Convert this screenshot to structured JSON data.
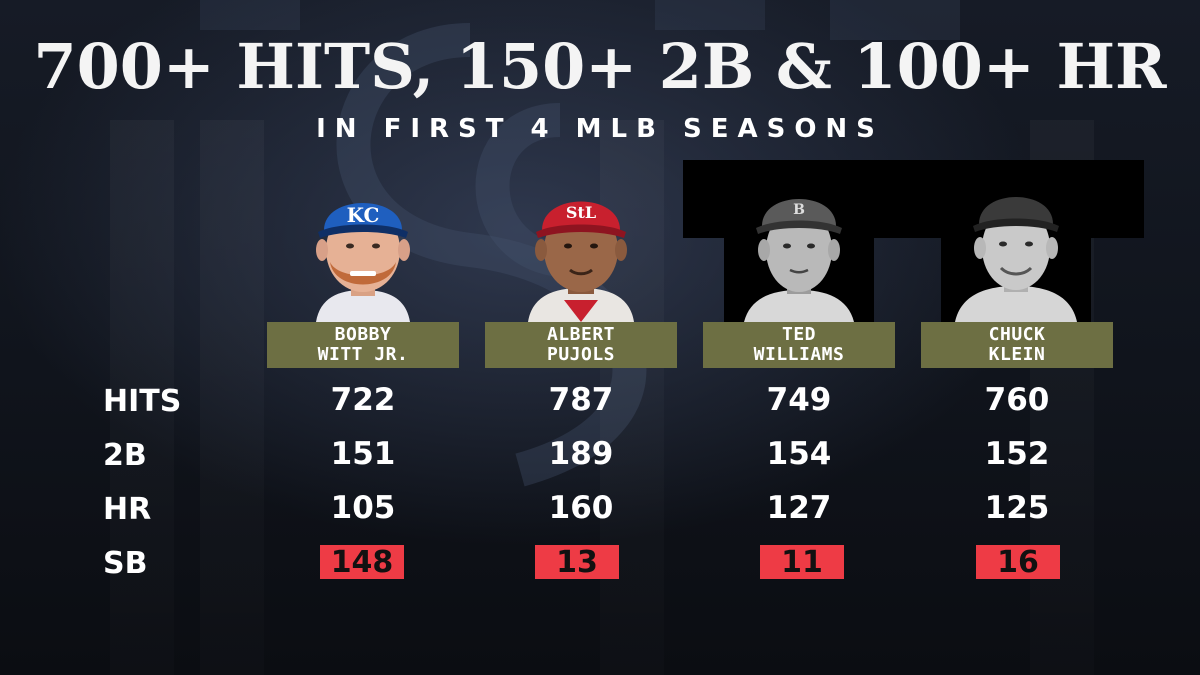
{
  "title": "700+ HITS, 150+ 2B & 100+ HR",
  "subtitle": "IN FIRST 4 MLB SEASONS",
  "row_labels": {
    "hits": "HITS",
    "doubles": "2B",
    "hr": "HR",
    "sb": "SB"
  },
  "players": [
    {
      "name_line1": "BOBBY",
      "name_line2": "WITT JR.",
      "cap_logo": "KC",
      "cap_color": "#1f5fbf",
      "hits": "722",
      "doubles": "151",
      "hr": "105",
      "sb": "148"
    },
    {
      "name_line1": "ALBERT",
      "name_line2": "PUJOLS",
      "cap_logo": "StL",
      "cap_color": "#c8202e",
      "hits": "787",
      "doubles": "189",
      "hr": "160",
      "sb": "13"
    },
    {
      "name_line1": "TED",
      "name_line2": "WILLIAMS",
      "cap_logo": "B",
      "cap_color": "#5a5a5a",
      "hits": "749",
      "doubles": "154",
      "hr": "127",
      "sb": "11"
    },
    {
      "name_line1": "CHUCK",
      "name_line2": "KLEIN",
      "cap_logo": "",
      "cap_color": "#3a3a3a",
      "hits": "760",
      "doubles": "152",
      "hr": "125",
      "sb": "16"
    }
  ],
  "colors": {
    "name_plate": "#6d6f43",
    "sb_highlight": "#ee3b45",
    "background": "#12161f"
  }
}
